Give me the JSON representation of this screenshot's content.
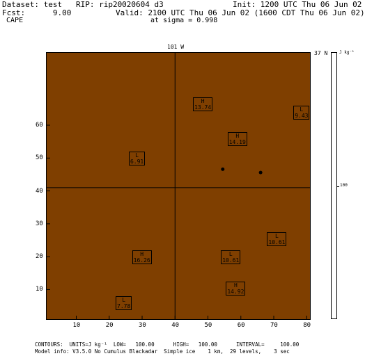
{
  "header": {
    "line1_left": "Dataset: test   RIP: rip20020604 d3",
    "line1_right": "Init: 1200 UTC Thu 06 Jun 02",
    "line2_left": "Fcst:      9.00",
    "line2_right": "Valid: 2100 UTC Thu 06 Jun 02 (1600 CDT Thu 06 Jun 02)",
    "line3_left": " CAPE",
    "line3_right": "at sigma = 0.998"
  },
  "map": {
    "top_label": "101 W",
    "right_label": "37 N",
    "fill_color": "#7f3f00",
    "line_color": "#000000",
    "xticks": [
      "10",
      "20",
      "30",
      "40",
      "50",
      "60",
      "70",
      "80"
    ],
    "yticks": [
      "10",
      "20",
      "30",
      "40",
      "50",
      "60"
    ],
    "xrange": [
      1,
      81
    ],
    "yrange": [
      1,
      82
    ],
    "vertical_line_x": 40,
    "horizontal_line_y": 41,
    "points": [
      {
        "x": 54.5,
        "y": 46.6
      },
      {
        "x": 66,
        "y": 45.6
      }
    ],
    "extrema": [
      {
        "type": "H",
        "value": "13.74",
        "x": 48,
        "y": 66.5
      },
      {
        "type": "L",
        "value": "9.43",
        "x": 78.5,
        "y": 64
      },
      {
        "type": "H",
        "value": "14.19",
        "x": 58.5,
        "y": 56
      },
      {
        "type": "L",
        "value": "6.91",
        "x": 28.5,
        "y": 50
      },
      {
        "type": "L",
        "value": "10.61",
        "x": 70.5,
        "y": 25.5
      },
      {
        "type": "H",
        "value": "16.26",
        "x": 29.5,
        "y": 20
      },
      {
        "type": "L",
        "value": "10.61",
        "x": 56.5,
        "y": 20
      },
      {
        "type": "H",
        "value": "14.92",
        "x": 58,
        "y": 10.5
      },
      {
        "type": "L",
        "value": "7.78",
        "x": 24.5,
        "y": 6
      }
    ]
  },
  "colorbar": {
    "units": "J kg⁻¹",
    "label": "100"
  },
  "footer": {
    "line1": "CONTOURS:  UNITS=J kg⁻¹  LOW=   100.00      HIGH=   100.00      INTERVAL=     100.00",
    "line2": "Model info: V3.5.0 No Cumulus Blackadar  Simple ice    1 km,  29 levels,    3 sec"
  }
}
